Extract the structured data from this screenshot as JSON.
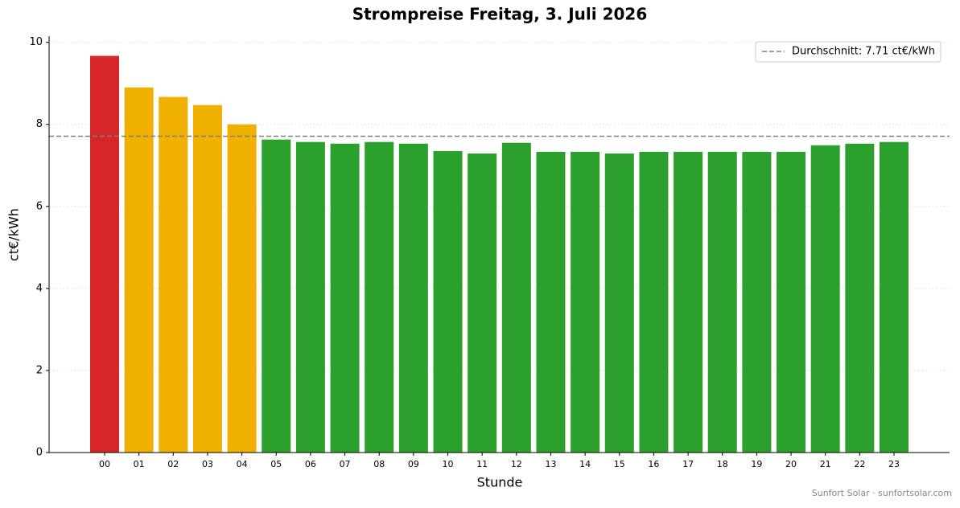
{
  "chart_data": {
    "type": "bar",
    "title": "Strompreise Freitag, 3. Juli 2026",
    "x_label": "Stunde",
    "y_label": "ct€/kWh",
    "footer": "Sunfort Solar · sunfortsolar.com",
    "categories": [
      "00",
      "01",
      "02",
      "03",
      "04",
      "05",
      "06",
      "07",
      "08",
      "09",
      "10",
      "11",
      "12",
      "13",
      "14",
      "15",
      "16",
      "17",
      "18",
      "19",
      "20",
      "21",
      "22",
      "23"
    ],
    "values": [
      9.67,
      8.9,
      8.67,
      8.47,
      8.0,
      7.63,
      7.57,
      7.53,
      7.57,
      7.53,
      7.35,
      7.29,
      7.55,
      7.33,
      7.33,
      7.29,
      7.33,
      7.33,
      7.33,
      7.33,
      7.33,
      7.49,
      7.53,
      7.57
    ],
    "colors": [
      "#d62728",
      "#f0b000",
      "#f0b000",
      "#f0b000",
      "#f0b000",
      "#2ca02c",
      "#2ca02c",
      "#2ca02c",
      "#2ca02c",
      "#2ca02c",
      "#2ca02c",
      "#2ca02c",
      "#2ca02c",
      "#2ca02c",
      "#2ca02c",
      "#2ca02c",
      "#2ca02c",
      "#2ca02c",
      "#2ca02c",
      "#2ca02c",
      "#2ca02c",
      "#2ca02c",
      "#2ca02c",
      "#2ca02c"
    ],
    "average": 7.71,
    "average_label": "Durchschnitt: 7.71 ct€/kWh",
    "average_color": "#808080",
    "ylim": [
      0,
      10.15
    ],
    "yticks": [
      0,
      2,
      4,
      6,
      8,
      10
    ],
    "grid": true,
    "legend": "upper right"
  }
}
